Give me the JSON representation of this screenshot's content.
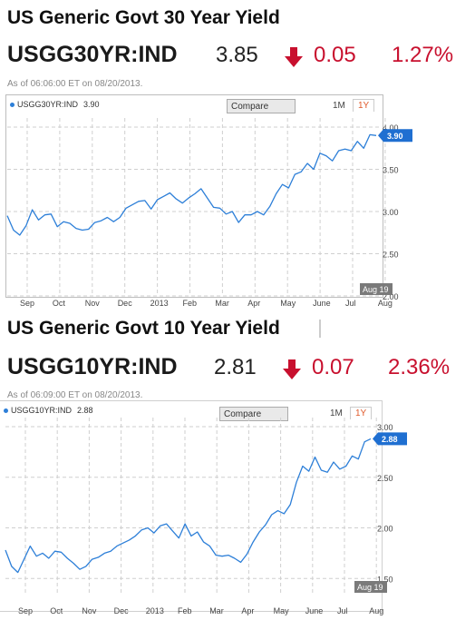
{
  "panels": [
    {
      "title": "US Generic Govt 30 Year Yield",
      "ticker": "USGG30YR:IND",
      "price": "3.85",
      "change": "0.05",
      "change_pct": "1.27%",
      "direction": "down",
      "as_of": "As of 06:06:00 ET on 08/20/2013.",
      "legend_label": "USGG30YR:IND",
      "legend_value": "3.90",
      "compare_label": "Compare",
      "range_buttons": [
        "1M",
        "1Y"
      ],
      "active_range": "1Y",
      "last_label": "3.90",
      "date_label": "Aug 19"
    },
    {
      "title": "US Generic Govt 10 Year Yield",
      "ticker": "USGG10YR:IND",
      "price": "2.81",
      "change": "0.07",
      "change_pct": "2.36%",
      "direction": "down",
      "as_of": "As of 06:09:00 ET on 08/20/2013.",
      "legend_label": "USGG10YR:IND",
      "legend_value": "2.88",
      "compare_label": "Compare",
      "range_buttons": [
        "1M",
        "1Y"
      ],
      "active_range": "1Y",
      "last_label": "2.88",
      "date_label": "Aug 19"
    }
  ],
  "colors": {
    "line": "#2d7fd8",
    "down": "#c8102e",
    "grid": "#cfcfcf",
    "badge": "#1f6fd1",
    "date_badge": "#7a7a7a"
  },
  "chart_data": [
    {
      "type": "line",
      "series": [
        {
          "name": "USGG30YR:IND",
          "values": [
            2.95,
            2.78,
            2.72,
            2.83,
            3.02,
            2.9,
            2.96,
            2.97,
            2.82,
            2.88,
            2.86,
            2.8,
            2.78,
            2.79,
            2.87,
            2.89,
            2.93,
            2.88,
            2.93,
            3.04,
            3.08,
            3.12,
            3.13,
            3.03,
            3.14,
            3.18,
            3.22,
            3.15,
            3.1,
            3.16,
            3.21,
            3.27,
            3.16,
            3.05,
            3.04,
            2.97,
            3.0,
            2.87,
            2.96,
            2.96,
            3.0,
            2.96,
            3.06,
            3.21,
            3.32,
            3.28,
            3.44,
            3.47,
            3.57,
            3.5,
            3.69,
            3.66,
            3.6,
            3.72,
            3.74,
            3.72,
            3.83,
            3.75,
            3.91,
            3.9
          ]
        }
      ],
      "x_tick_labels": [
        "Sep",
        "Oct",
        "Nov",
        "Dec",
        "2013",
        "Feb",
        "Mar",
        "Apr",
        "May",
        "June",
        "Jul",
        "Aug"
      ],
      "y_tick_labels": [
        "4.00",
        "3.50",
        "3.00",
        "2.50",
        "2.00"
      ],
      "ylim": [
        2.0,
        4.0
      ],
      "grid": true
    },
    {
      "type": "line",
      "series": [
        {
          "name": "USGG10YR:IND",
          "values": [
            1.78,
            1.62,
            1.56,
            1.69,
            1.82,
            1.72,
            1.75,
            1.7,
            1.77,
            1.76,
            1.7,
            1.65,
            1.59,
            1.62,
            1.69,
            1.71,
            1.75,
            1.77,
            1.82,
            1.85,
            1.88,
            1.92,
            1.98,
            2.0,
            1.95,
            2.02,
            2.04,
            1.97,
            1.9,
            2.04,
            1.92,
            1.96,
            1.86,
            1.82,
            1.73,
            1.72,
            1.73,
            1.7,
            1.66,
            1.74,
            1.86,
            1.96,
            2.03,
            2.13,
            2.17,
            2.14,
            2.23,
            2.45,
            2.61,
            2.56,
            2.7,
            2.57,
            2.55,
            2.65,
            2.58,
            2.61,
            2.71,
            2.68,
            2.85,
            2.88
          ]
        }
      ],
      "x_tick_labels": [
        "Sep",
        "Oct",
        "Nov",
        "Dec",
        "2013",
        "Feb",
        "Mar",
        "Apr",
        "May",
        "June",
        "Jul",
        "Aug"
      ],
      "y_tick_labels": [
        "3.00",
        "2.50",
        "2.00",
        "1.50"
      ],
      "ylim": [
        1.35,
        3.0
      ],
      "grid": true
    }
  ]
}
